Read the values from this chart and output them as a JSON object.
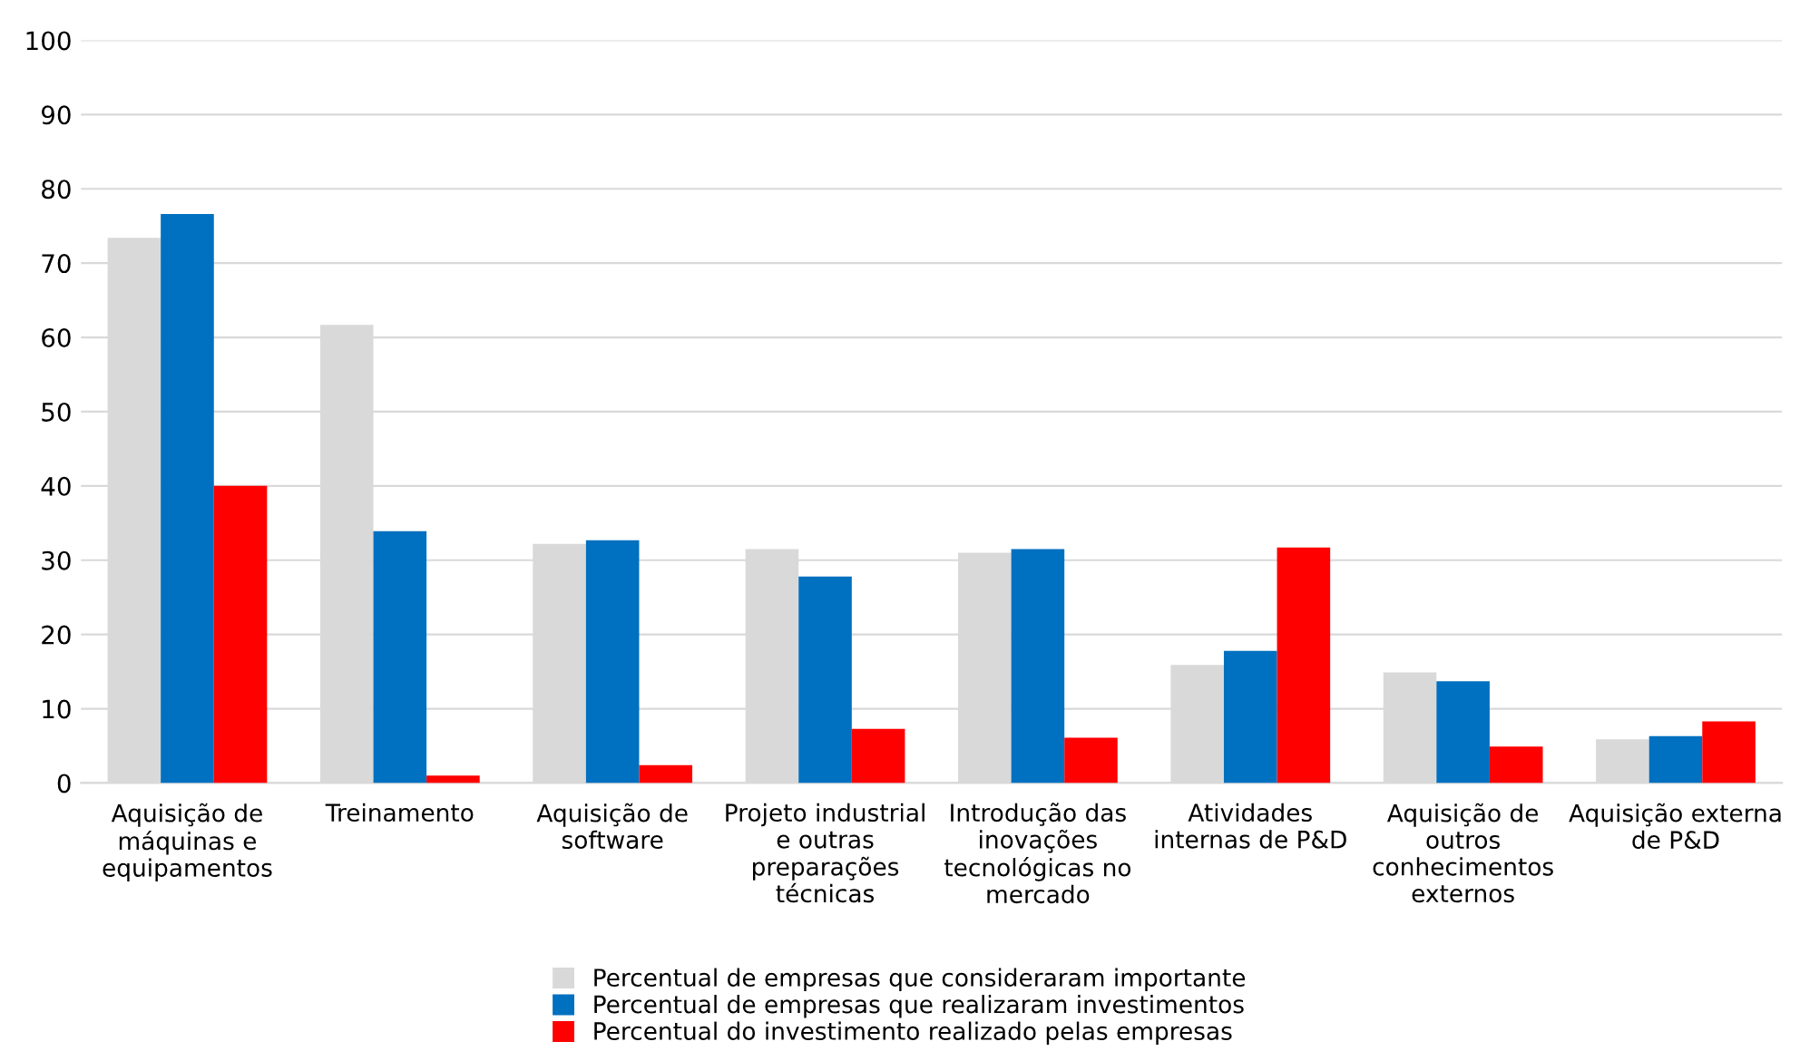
{
  "chart_data": {
    "type": "bar",
    "categories": [
      "Aquisição de\nmáquinas e\nequipamentos",
      "Treinamento",
      "Aquisição de\nsoftware",
      "Projeto industrial\ne outras\npreparações\ntécnicas",
      "Introdução das\ninovações\ntecnológicas no\nmercado",
      "Atividades\ninternas de P&D",
      "Aquisição de\noutros\nconhecimentos\nexternos",
      "Aquisição externa\nde P&D"
    ],
    "series": [
      {
        "name": "Percentual de empresas que consideraram importante",
        "color": "#d9d9d9",
        "values": [
          73.4,
          61.7,
          32.2,
          31.5,
          31.0,
          15.9,
          14.9,
          5.9
        ]
      },
      {
        "name": "Percentual de empresas que realizaram investimentos",
        "color": "#0070c0",
        "values": [
          76.6,
          33.9,
          32.7,
          27.8,
          31.5,
          17.8,
          13.7,
          6.3
        ]
      },
      {
        "name": "Percentual do investimento realizado pelas empresas",
        "color": "#ff0000",
        "values": [
          40.0,
          1.0,
          2.4,
          7.3,
          6.1,
          31.7,
          4.9,
          8.3
        ]
      }
    ],
    "ylim": [
      0,
      100
    ],
    "yticks": [
      0,
      10,
      20,
      30,
      40,
      50,
      60,
      70,
      80,
      90,
      100
    ],
    "grid": "y",
    "legend": "bottom"
  }
}
